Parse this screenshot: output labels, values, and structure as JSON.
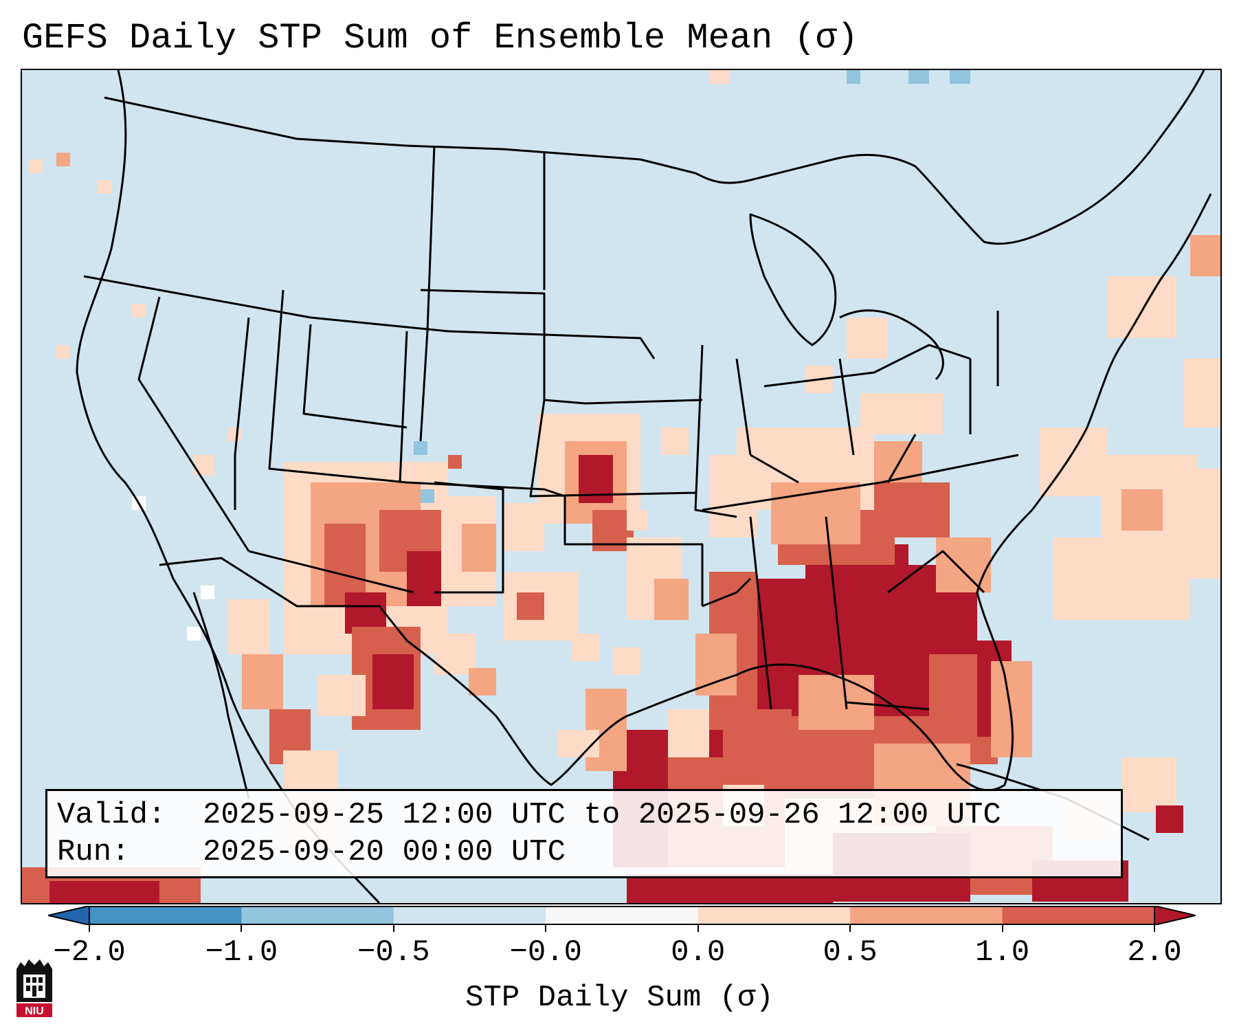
{
  "title": "GEFS Daily STP Sum of Ensemble Mean (σ)",
  "valid_line": {
    "label": "Valid:",
    "value": "2025-09-25 12:00 UTC to 2025-09-26 12:00 UTC"
  },
  "run_line": {
    "label": "Run:",
    "value": "2025-09-20 00:00 UTC"
  },
  "colorbar": {
    "label": "STP Daily Sum (σ)",
    "ticks": [
      "−2.0",
      "−1.0",
      "−0.5",
      "−0.0",
      "0.0",
      "0.5",
      "1.0",
      "2.0"
    ],
    "bin_colors": [
      "#2166ac",
      "#4393c3",
      "#92c5de",
      "#d1e5f0",
      "#f7f7f7",
      "#fddbc7",
      "#f4a582",
      "#d6604d",
      "#b2182b"
    ],
    "extend": "both"
  },
  "map": {
    "background_color": "#d1e5f0",
    "projection": "Lambert Conformal, Continental US",
    "field": "STP daily sum anomaly, ensemble mean"
  },
  "logo": {
    "text": "NIU"
  }
}
